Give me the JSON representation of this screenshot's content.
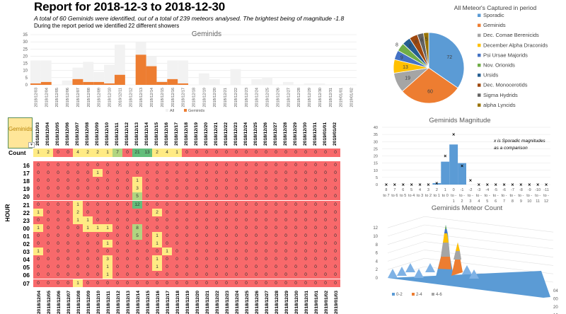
{
  "report": {
    "title": "Report for 2018-12-3 to 2018-12-30",
    "subtitle": "A total of 60 Geminids were identified, out of a total of 239 meteors analysed. The brightest being of magnitude -1.8",
    "subtitle2": "During the report period we identified 22 different showers"
  },
  "selector": {
    "label": "Geminids",
    "dropdown_icon": "dropdown-arrow-icon"
  },
  "grid": {
    "count_label": "Count",
    "hour_axis_label": "HOUR",
    "dates": [
      "2018/12/03",
      "2018/12/04",
      "2018/12/05",
      "2018/12/06",
      "2018/12/07",
      "2018/12/08",
      "2018/12/09",
      "2018/12/10",
      "2018/12/11",
      "2018/12/12",
      "2018/12/13",
      "2018/12/14",
      "2018/12/15",
      "2018/12/16",
      "2018/12/17",
      "2018/12/18",
      "2018/12/19",
      "2018/12/20",
      "2018/12/21",
      "2018/12/22",
      "2018/12/23",
      "2018/12/24",
      "2018/12/25",
      "2018/12/26",
      "2018/12/27",
      "2018/12/28",
      "2018/12/29",
      "2018/12/30",
      "2018/12/31",
      "2019/01/01",
      "2019/01/02"
    ],
    "bottom_dates": [
      "2018/12/04",
      "2018/12/05",
      "2018/12/06",
      "2018/12/07",
      "2018/12/08",
      "2018/12/09",
      "2018/12/10",
      "2018/12/11",
      "2018/12/12",
      "2018/12/13",
      "2018/12/14",
      "2018/12/15",
      "2018/12/16",
      "2018/12/17",
      "2018/12/18",
      "2018/12/19",
      "2018/12/20",
      "2018/12/21",
      "2018/12/22",
      "2018/12/23",
      "2018/12/24",
      "2018/12/25",
      "2018/12/26",
      "2018/12/27",
      "2018/12/28",
      "2018/12/29",
      "2018/12/30",
      "2018/12/31",
      "2019/01/01",
      "2019/01/02",
      "2019/01/03"
    ],
    "counts": [
      1,
      2,
      0,
      0,
      4,
      2,
      2,
      1,
      7,
      0,
      21,
      13,
      2,
      4,
      1,
      0,
      0,
      0,
      0,
      0,
      0,
      0,
      0,
      0,
      0,
      0,
      0,
      0,
      0,
      0,
      0
    ],
    "hours": [
      "16",
      "17",
      "18",
      "19",
      "20",
      "21",
      "22",
      "23",
      "00",
      "01",
      "02",
      "03",
      "04",
      "05",
      "06",
      "07"
    ],
    "rows": [
      [
        0,
        0,
        0,
        0,
        0,
        0,
        0,
        0,
        0,
        0,
        0,
        0,
        0,
        0,
        0,
        0,
        0,
        0,
        0,
        0,
        0,
        0,
        0,
        0,
        0,
        0,
        0,
        0,
        0,
        0,
        0
      ],
      [
        0,
        0,
        0,
        0,
        0,
        0,
        1,
        0,
        0,
        0,
        0,
        0,
        0,
        0,
        0,
        0,
        0,
        0,
        0,
        0,
        0,
        0,
        0,
        0,
        0,
        0,
        0,
        0,
        0,
        0,
        0
      ],
      [
        0,
        0,
        0,
        0,
        0,
        0,
        0,
        0,
        0,
        0,
        1,
        0,
        0,
        0,
        0,
        0,
        0,
        0,
        0,
        0,
        0,
        0,
        0,
        0,
        0,
        0,
        0,
        0,
        0,
        0,
        0
      ],
      [
        0,
        0,
        0,
        0,
        0,
        0,
        0,
        0,
        0,
        0,
        3,
        0,
        0,
        0,
        0,
        0,
        0,
        0,
        0,
        0,
        0,
        0,
        0,
        0,
        0,
        0,
        0,
        0,
        0,
        0,
        0
      ],
      [
        0,
        0,
        0,
        0,
        0,
        0,
        0,
        0,
        0,
        0,
        5,
        0,
        0,
        0,
        0,
        0,
        0,
        0,
        0,
        0,
        0,
        0,
        0,
        0,
        0,
        0,
        0,
        0,
        0,
        0,
        0
      ],
      [
        0,
        0,
        0,
        0,
        1,
        0,
        0,
        0,
        0,
        0,
        12,
        0,
        0,
        0,
        0,
        0,
        0,
        0,
        0,
        0,
        0,
        0,
        0,
        0,
        0,
        0,
        0,
        0,
        0,
        0,
        0
      ],
      [
        1,
        0,
        0,
        0,
        2,
        0,
        0,
        0,
        0,
        0,
        0,
        0,
        2,
        0,
        0,
        0,
        0,
        0,
        0,
        0,
        0,
        0,
        0,
        0,
        0,
        0,
        0,
        0,
        0,
        0,
        0
      ],
      [
        0,
        0,
        0,
        0,
        1,
        1,
        0,
        0,
        0,
        0,
        0,
        0,
        0,
        0,
        0,
        0,
        0,
        0,
        0,
        0,
        0,
        0,
        0,
        0,
        0,
        0,
        0,
        0,
        0,
        0,
        0
      ],
      [
        1,
        0,
        0,
        0,
        0,
        1,
        1,
        1,
        0,
        0,
        8,
        0,
        0,
        0,
        0,
        0,
        0,
        0,
        0,
        0,
        0,
        0,
        0,
        0,
        0,
        0,
        0,
        0,
        0,
        0,
        0
      ],
      [
        0,
        0,
        0,
        0,
        0,
        0,
        0,
        0,
        0,
        0,
        5,
        0,
        1,
        0,
        0,
        0,
        0,
        0,
        0,
        0,
        0,
        0,
        0,
        0,
        0,
        0,
        0,
        0,
        0,
        0,
        0
      ],
      [
        0,
        0,
        0,
        0,
        0,
        0,
        0,
        1,
        0,
        0,
        0,
        0,
        1,
        0,
        0,
        0,
        0,
        0,
        0,
        0,
        0,
        0,
        0,
        0,
        0,
        0,
        0,
        0,
        0,
        0,
        0
      ],
      [
        1,
        0,
        0,
        0,
        0,
        0,
        0,
        0,
        0,
        0,
        0,
        0,
        0,
        1,
        0,
        0,
        0,
        0,
        0,
        0,
        0,
        0,
        0,
        0,
        0,
        0,
        0,
        0,
        0,
        0,
        0
      ],
      [
        0,
        0,
        0,
        0,
        0,
        0,
        0,
        3,
        0,
        0,
        0,
        0,
        1,
        0,
        0,
        0,
        0,
        0,
        0,
        0,
        0,
        0,
        0,
        0,
        0,
        0,
        0,
        0,
        0,
        0,
        0
      ],
      [
        0,
        0,
        0,
        0,
        0,
        0,
        0,
        1,
        0,
        0,
        0,
        0,
        1,
        0,
        0,
        0,
        0,
        0,
        0,
        0,
        0,
        0,
        0,
        0,
        0,
        0,
        0,
        0,
        0,
        0,
        0
      ],
      [
        0,
        0,
        0,
        0,
        0,
        0,
        0,
        1,
        0,
        0,
        0,
        0,
        0,
        0,
        0,
        0,
        0,
        0,
        0,
        0,
        0,
        0,
        0,
        0,
        0,
        0,
        0,
        0,
        0,
        0,
        0
      ],
      [
        0,
        0,
        0,
        0,
        1,
        0,
        0,
        0,
        0,
        0,
        0,
        0,
        0,
        0,
        0,
        0,
        0,
        0,
        0,
        0,
        0,
        0,
        0,
        0,
        0,
        0,
        0,
        0,
        0,
        0,
        0
      ]
    ],
    "colors": {
      "zero": "#f8696b",
      "low": "#ffeb84",
      "mid": "#b1d580",
      "high": "#63be7b"
    }
  },
  "chart_data": [
    {
      "type": "bar",
      "title": "Geminids",
      "categories": [
        "2018/12/03",
        "2018/12/04",
        "2018/12/05",
        "2018/12/06",
        "2018/12/07",
        "2018/12/08",
        "2018/12/09",
        "2018/12/10",
        "2018/12/11",
        "2018/12/12",
        "2018/12/13",
        "2018/12/14",
        "2018/12/15",
        "2018/12/16",
        "2018/12/17",
        "2018/12/18",
        "2018/12/19",
        "2018/12/20",
        "2018/12/21",
        "2018/12/22",
        "2018/12/23",
        "2018/12/24",
        "2018/12/25",
        "2018/12/26",
        "2018/12/27",
        "2018/12/28",
        "2018/12/29",
        "2018/12/30",
        "2018/12/31",
        "2019/01/01",
        "2019/01/02"
      ],
      "series": [
        {
          "name": "All",
          "color": "#f2f2f2",
          "values": [
            17,
            17,
            0,
            3,
            12,
            16,
            9,
            14,
            28,
            0,
            30,
            20,
            3,
            17,
            17,
            0,
            8,
            4,
            0,
            11,
            0,
            4,
            5,
            0,
            2,
            0,
            1,
            1,
            0,
            0,
            0
          ]
        },
        {
          "name": "Geminids",
          "color": "#ed7d31",
          "values": [
            1,
            2,
            0,
            0,
            4,
            2,
            2,
            1,
            7,
            0,
            21,
            13,
            2,
            4,
            1,
            0,
            0,
            0,
            0,
            0,
            0,
            0,
            0,
            0,
            0,
            0,
            0,
            0,
            0,
            0,
            0
          ]
        }
      ],
      "ylim": [
        0,
        35
      ],
      "yticks": [
        0,
        5,
        10,
        15,
        20,
        25,
        30,
        35
      ],
      "grid": true,
      "legend": "bottom"
    },
    {
      "type": "pie",
      "title": "All Meteor's Captured in period",
      "labels": [
        "Sporadic",
        "Geminids",
        "Dec. Comae Berenicids",
        "December Alpha Draconids",
        "Psi Ursae Majorids",
        "Nov. Orionids",
        "Ursids",
        "Dec. Monocerotids",
        "Sigma Hydrids",
        "alpha Lyncids"
      ],
      "values": [
        72,
        60,
        19,
        13,
        9,
        8,
        8,
        8,
        6,
        5
      ],
      "colors": [
        "#5b9bd5",
        "#ed7d31",
        "#a5a5a5",
        "#ffc000",
        "#4472c4",
        "#70ad47",
        "#255e91",
        "#9e480e",
        "#636363",
        "#997300"
      ],
      "legend": "right"
    },
    {
      "type": "bar",
      "title": "Geminids Magnitude",
      "categories": [
        "8 to 7",
        "7 to 6",
        "6 to 5",
        "5 to 4",
        "4 to 3",
        "3 to 2",
        "2 to 1",
        "1 to 0",
        "0 to -1",
        "-1 to -2",
        "-2 to -3",
        "-3 to -4",
        "-4 to -5",
        "-5 to -6",
        "-6 to -7",
        "-7 to -8",
        "-8 to -9",
        "-9 to -10",
        "-10 to -11",
        "-11 to -12"
      ],
      "series": [
        {
          "name": "Geminids",
          "color": "#5b9bd5",
          "values": [
            0,
            0,
            0,
            0,
            0,
            0,
            1,
            16,
            28,
            15,
            0,
            0,
            0,
            0,
            0,
            0,
            0,
            0,
            0,
            0
          ]
        },
        {
          "name": "Sporadic (x)",
          "marker": "x",
          "values": [
            0,
            0,
            0,
            0,
            0,
            0,
            1,
            20,
            35,
            13,
            3,
            0,
            0,
            0,
            0,
            0,
            0,
            0,
            0,
            0
          ]
        }
      ],
      "annotation": "x is Sporadic magnitudes as a comparison",
      "ylim": [
        0,
        40
      ],
      "yticks": [
        0,
        5,
        10,
        15,
        20,
        25,
        30,
        35,
        40
      ],
      "grid": true
    },
    {
      "type": "area",
      "title": "Geminids Meteor Count",
      "subtype": "3d-surface",
      "zticks": [
        0,
        2,
        4,
        6,
        8,
        10,
        12
      ],
      "depth_ticks": [
        "04",
        "00",
        "20",
        "16"
      ],
      "legend_entries": [
        {
          "name": "0-2",
          "color": "#5b9bd5"
        },
        {
          "name": "2-4",
          "color": "#ed7d31"
        },
        {
          "name": "4-6",
          "color": "#a5a5a5"
        }
      ],
      "legend": "bottom-left",
      "peak_value": 12
    }
  ]
}
